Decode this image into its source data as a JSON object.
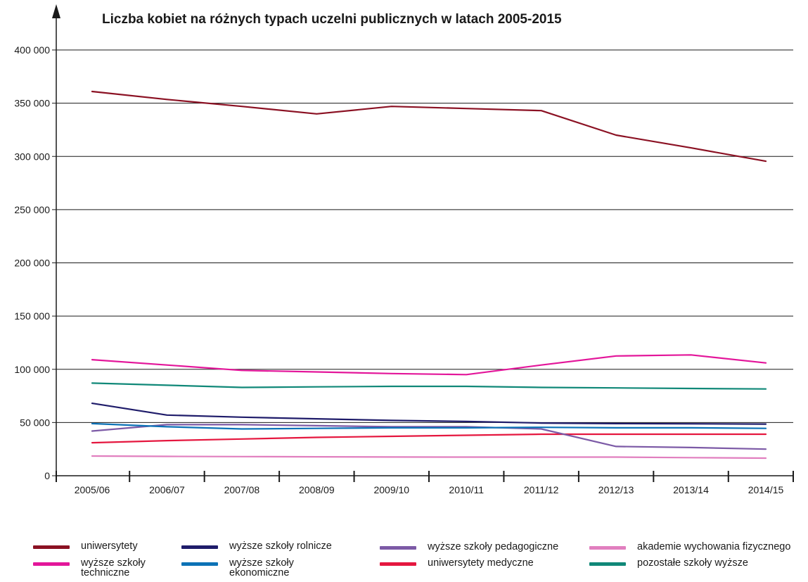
{
  "chart_data": {
    "type": "line",
    "title": "Liczba kobiet na różnych typach uczelni publicznych w latach 2005-2015",
    "xlabel": "",
    "ylabel": "",
    "ylim": [
      0,
      400000
    ],
    "grid": true,
    "legend_position": "bottom",
    "categories": [
      "2005/06",
      "2006/07",
      "2007/08",
      "2008/09",
      "2009/10",
      "2010/11",
      "2011/12",
      "2012/13",
      "2013/14",
      "2014/15"
    ],
    "y_ticks": [
      0,
      50000,
      100000,
      150000,
      200000,
      250000,
      300000,
      350000,
      400000
    ],
    "y_tick_labels": [
      "0",
      "50 000",
      "100 000",
      "150 000",
      "200 000",
      "250 000",
      "300 000",
      "350 000",
      "400 000"
    ],
    "series": [
      {
        "name": "uniwersytety",
        "color": "#8b1123",
        "values": [
          361000,
          353500,
          347000,
          340000,
          347000,
          345000,
          343000,
          320000,
          308000,
          295500
        ]
      },
      {
        "name": "wyższe szkoły techniczne",
        "color": "#e3169a",
        "values": [
          109000,
          104000,
          99000,
          97500,
          96000,
          95000,
          104000,
          112500,
          113500,
          106000
        ]
      },
      {
        "name": "wyższe szkoły rolnicze",
        "color": "#1f1c6a",
        "values": [
          68000,
          57000,
          55000,
          53500,
          52000,
          51000,
          49500,
          49000,
          48800,
          48500
        ]
      },
      {
        "name": "wyższe szkoły ekonomiczne",
        "color": "#0c72b6",
        "values": [
          49000,
          46000,
          44000,
          44500,
          45000,
          45000,
          45500,
          45000,
          45000,
          44500
        ]
      },
      {
        "name": "wyższe szkoły pedagogiczne",
        "color": "#7c5aa6",
        "values": [
          42000,
          48000,
          48000,
          47000,
          46000,
          46000,
          44000,
          27500,
          26500,
          25000
        ]
      },
      {
        "name": "uniwersytety medyczne",
        "color": "#e5173f",
        "values": [
          31000,
          33000,
          34500,
          36000,
          37000,
          38000,
          39000,
          39000,
          39000,
          39000
        ]
      },
      {
        "name": "akademie wychowania fizycznego",
        "color": "#e17fbf",
        "values": [
          18500,
          18200,
          18000,
          17800,
          17600,
          17500,
          17500,
          17500,
          17000,
          16500
        ]
      },
      {
        "name": "pozostałe szkoły wyższe",
        "color": "#108878",
        "values": [
          87000,
          85000,
          83000,
          83500,
          84000,
          84000,
          83000,
          82500,
          82000,
          81500
        ]
      }
    ]
  },
  "legend": {
    "items": [
      {
        "label": "uniwersytety",
        "color": "#8b1123"
      },
      {
        "label": "wyższe szkoły techniczne",
        "color": "#e3169a"
      },
      {
        "label": "wyższe szkoły rolnicze",
        "color": "#1f1c6a"
      },
      {
        "label": "wyższe szkoły ekonomiczne",
        "color": "#0c72b6"
      },
      {
        "label": "wyższe szkoły pedagogiczne",
        "color": "#7c5aa6"
      },
      {
        "label": "uniwersytety medyczne",
        "color": "#e5173f"
      },
      {
        "label": "akademie wychowania fizycznego",
        "color": "#e17fbf"
      },
      {
        "label": "pozostałe szkoły wyższe",
        "color": "#108878"
      }
    ]
  }
}
